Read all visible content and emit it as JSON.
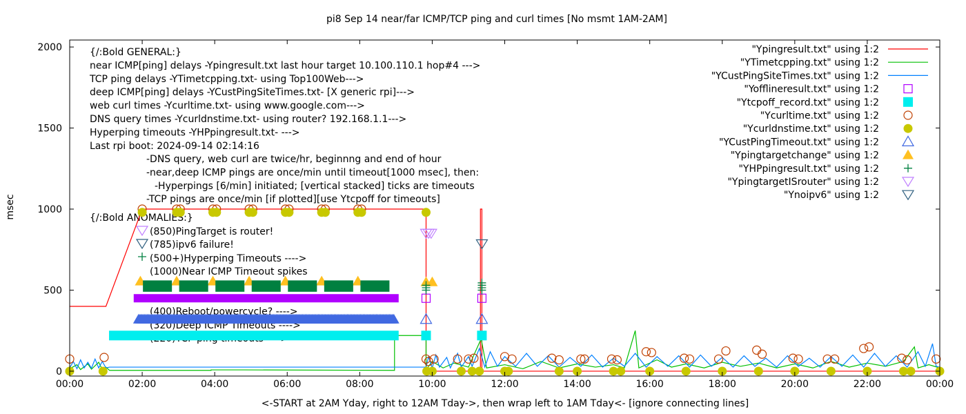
{
  "chart_data": {
    "type": "scatter",
    "title": "pi8 Sep 14  near/far ICMP/TCP ping and curl times [No msmt 1AM-2AM]",
    "xlabel": "<-START at 2AM Yday, right to 12AM Tday->, then wrap left to 1AM Tday<- [ignore connecting lines]",
    "ylabel": "msec",
    "xlim": [
      0,
      24
    ],
    "ylim": [
      -30,
      2043
    ],
    "x_ticks": [
      {
        "v": 0,
        "label": "00:00"
      },
      {
        "v": 2,
        "label": "02:00"
      },
      {
        "v": 4,
        "label": "04:00"
      },
      {
        "v": 6,
        "label": "06:00"
      },
      {
        "v": 8,
        "label": "08:00"
      },
      {
        "v": 10,
        "label": "10:00"
      },
      {
        "v": 12,
        "label": "12:00"
      },
      {
        "v": 14,
        "label": "14:00"
      },
      {
        "v": 16,
        "label": "16:00"
      },
      {
        "v": 18,
        "label": "18:00"
      },
      {
        "v": 20,
        "label": "20:00"
      },
      {
        "v": 22,
        "label": "22:00"
      },
      {
        "v": 24,
        "label": "00:00"
      }
    ],
    "y_ticks": [
      {
        "v": 0,
        "label": "0"
      },
      {
        "v": 500,
        "label": "500"
      },
      {
        "v": 1000,
        "label": "1000"
      },
      {
        "v": 1500,
        "label": "1500"
      },
      {
        "v": 2000,
        "label": "2000"
      }
    ],
    "grid": false,
    "legend_position": "top-right",
    "annotations": {
      "general": [
        "{/:Bold GENERAL:}",
        "near ICMP[ping] delays -Ypingresult.txt last hour target 10.100.110.1 hop#4 --->",
        "TCP ping delays -YTimetcpping.txt- using Top100Web--->",
        "deep ICMP[ping] delays -YCustPingSiteTimes.txt- [X generic rpi]--->",
        "web curl times -Ycurltime.txt- using www.google.com--->",
        "DNS query times -Ycurldnstime.txt- using router? 192.168.1.1--->",
        "Hyperping timeouts -YHPpingresult.txt- --->",
        "Last rpi boot: 2024-09-14 02:14:16"
      ],
      "notes": [
        "-DNS query, web curl are twice/hr, beginnng and end of hour",
        "-near,deep ICMP pings are once/min until timeout[1000 msec], then:",
        "  -Hyperpings [6/min] initiated; [vertical stacked] ticks are timeouts",
        "-TCP pings are once/min [if plotted][use Ytcpoff for timeouts]"
      ],
      "anomalies_title": "{/:Bold ANOMALIES:}",
      "anomalies": [
        "(850)PingTarget is router!",
        "(785)ipv6 failure!",
        "(500+)Hyperping Timeouts ---->",
        "(1000)Near ICMP Timeout spikes",
        "(400)Reboot/powercycle? ---->",
        "(320)Deep ICMP Timeouts ---->",
        "(220)TCP ping timeouts ---->"
      ]
    },
    "series": [
      {
        "name": "\"Ypingresult.txt\" using 1:2",
        "style": "line",
        "color": "#ff0000",
        "points": [
          [
            0,
            400
          ],
          [
            1,
            400
          ],
          [
            2,
            1000
          ],
          [
            9.83,
            1000
          ],
          [
            9.83,
            0
          ],
          [
            11.33,
            0
          ],
          [
            11.33,
            1000
          ],
          [
            11.37,
            1000
          ],
          [
            11.37,
            0
          ],
          [
            24,
            0
          ]
        ]
      },
      {
        "name": "\"YTimetcpping.txt\" using 1:2",
        "style": "line",
        "color": "#00c000",
        "points": [
          [
            0,
            15
          ],
          [
            0.2,
            40
          ],
          [
            0.3,
            10
          ],
          [
            0.5,
            45
          ],
          [
            0.6,
            12
          ],
          [
            0.8,
            55
          ],
          [
            0.9,
            10
          ],
          [
            1.0,
            25
          ],
          [
            1.1,
            5
          ],
          [
            3.9,
            5
          ],
          [
            3.9,
            8
          ],
          [
            4.8,
            8
          ],
          [
            8.96,
            5
          ],
          [
            8.96,
            220
          ],
          [
            9.83,
            220
          ],
          [
            9.83,
            10
          ],
          [
            10.0,
            60
          ],
          [
            10.3,
            20
          ],
          [
            10.6,
            50
          ],
          [
            11.0,
            25
          ],
          [
            11.35,
            200
          ],
          [
            11.5,
            20
          ],
          [
            12.0,
            40
          ],
          [
            12.5,
            15
          ],
          [
            13.0,
            60
          ],
          [
            13.5,
            20
          ],
          [
            14.0,
            45
          ],
          [
            14.5,
            25
          ],
          [
            15.0,
            40
          ],
          [
            15.3,
            20
          ],
          [
            15.6,
            250
          ],
          [
            15.7,
            20
          ],
          [
            16.2,
            70
          ],
          [
            16.6,
            25
          ],
          [
            17.0,
            45
          ],
          [
            17.5,
            20
          ],
          [
            18.0,
            55
          ],
          [
            18.5,
            30
          ],
          [
            19.0,
            50
          ],
          [
            19.5,
            20
          ],
          [
            20.0,
            45
          ],
          [
            20.5,
            20
          ],
          [
            21.0,
            60
          ],
          [
            21.5,
            25
          ],
          [
            22.0,
            50
          ],
          [
            22.5,
            30
          ],
          [
            23.0,
            60
          ],
          [
            23.3,
            150
          ],
          [
            23.4,
            20
          ],
          [
            23.7,
            40
          ],
          [
            24,
            20
          ]
        ]
      },
      {
        "name": "\"YCustPingSiteTimes.txt\" using 1:2",
        "style": "line",
        "color": "#0080ff",
        "points": [
          [
            0,
            20
          ],
          [
            0.1,
            60
          ],
          [
            0.2,
            15
          ],
          [
            0.3,
            70
          ],
          [
            0.4,
            20
          ],
          [
            0.5,
            55
          ],
          [
            0.6,
            18
          ],
          [
            0.7,
            75
          ],
          [
            0.8,
            20
          ],
          [
            0.9,
            60
          ],
          [
            1.0,
            20
          ],
          [
            1.1,
            25
          ],
          [
            9.83,
            25
          ],
          [
            9.9,
            90
          ],
          [
            10.0,
            20
          ],
          [
            10.1,
            100
          ],
          [
            10.2,
            25
          ],
          [
            10.4,
            85
          ],
          [
            10.5,
            20
          ],
          [
            10.7,
            110
          ],
          [
            10.8,
            25
          ],
          [
            11.0,
            90
          ],
          [
            11.1,
            30
          ],
          [
            11.3,
            140
          ],
          [
            11.45,
            25
          ],
          [
            11.6,
            120
          ],
          [
            11.8,
            30
          ],
          [
            12.0,
            90
          ],
          [
            12.3,
            30
          ],
          [
            12.6,
            110
          ],
          [
            12.9,
            30
          ],
          [
            13.2,
            95
          ],
          [
            13.5,
            25
          ],
          [
            13.8,
            85
          ],
          [
            14.1,
            30
          ],
          [
            14.4,
            100
          ],
          [
            14.7,
            25
          ],
          [
            15.0,
            80
          ],
          [
            15.3,
            30
          ],
          [
            15.6,
            110
          ],
          [
            15.9,
            25
          ],
          [
            16.2,
            90
          ],
          [
            16.5,
            30
          ],
          [
            16.8,
            95
          ],
          [
            17.1,
            25
          ],
          [
            17.4,
            100
          ],
          [
            17.7,
            30
          ],
          [
            18.0,
            85
          ],
          [
            18.3,
            25
          ],
          [
            18.6,
            95
          ],
          [
            18.9,
            30
          ],
          [
            19.2,
            80
          ],
          [
            19.5,
            25
          ],
          [
            19.8,
            95
          ],
          [
            20.1,
            30
          ],
          [
            20.4,
            80
          ],
          [
            20.7,
            25
          ],
          [
            21.0,
            90
          ],
          [
            21.3,
            30
          ],
          [
            21.6,
            100
          ],
          [
            21.9,
            25
          ],
          [
            22.2,
            110
          ],
          [
            22.5,
            30
          ],
          [
            22.8,
            95
          ],
          [
            23.1,
            25
          ],
          [
            23.4,
            120
          ],
          [
            23.6,
            30
          ],
          [
            23.8,
            170
          ],
          [
            23.9,
            30
          ],
          [
            24,
            25
          ]
        ]
      },
      {
        "name": "\"Yofflineresult.txt\" using 1:2",
        "style": "open-square",
        "color": "#b000ff",
        "points": [
          [
            9.83,
            450
          ],
          [
            11.37,
            450
          ]
        ],
        "dense_ranges": [
          [
            1.88,
            8.96,
            450
          ]
        ]
      },
      {
        "name": "\"Ytcpoff_record.txt\" using 1:2",
        "style": "filled-square",
        "color": "#00eeee",
        "points": [
          [
            9.83,
            220
          ],
          [
            11.37,
            220
          ]
        ],
        "dense_ranges": [
          [
            1.2,
            8.96,
            220
          ]
        ]
      },
      {
        "name": "\"Ycurltime.txt\" using 1:2",
        "style": "open-circle",
        "color": "#c04000",
        "points": [
          [
            0,
            75
          ],
          [
            0.95,
            85
          ],
          [
            2,
            1000
          ],
          [
            2.95,
            1000
          ],
          [
            3.05,
            1000
          ],
          [
            3.95,
            1000
          ],
          [
            4.05,
            1000
          ],
          [
            4.95,
            1000
          ],
          [
            5.05,
            1000
          ],
          [
            5.95,
            1000
          ],
          [
            6.05,
            1000
          ],
          [
            6.95,
            1000
          ],
          [
            7.05,
            1000
          ],
          [
            7.95,
            1000
          ],
          [
            8.05,
            1000
          ],
          [
            9.83,
            75
          ],
          [
            9.9,
            60
          ],
          [
            10.05,
            75
          ],
          [
            10.7,
            75
          ],
          [
            11.0,
            75
          ],
          [
            11.15,
            80
          ],
          [
            12.0,
            90
          ],
          [
            12.2,
            75
          ],
          [
            13.3,
            80
          ],
          [
            13.5,
            70
          ],
          [
            14.1,
            75
          ],
          [
            14.2,
            75
          ],
          [
            14.95,
            75
          ],
          [
            15.1,
            70
          ],
          [
            15.9,
            120
          ],
          [
            16.05,
            115
          ],
          [
            16.95,
            80
          ],
          [
            17.1,
            75
          ],
          [
            17.9,
            75
          ],
          [
            18.1,
            125
          ],
          [
            18.95,
            130
          ],
          [
            19.1,
            105
          ],
          [
            19.95,
            80
          ],
          [
            20.1,
            75
          ],
          [
            20.9,
            75
          ],
          [
            21.1,
            75
          ],
          [
            21.9,
            140
          ],
          [
            22.05,
            150
          ],
          [
            22.95,
            80
          ],
          [
            23.1,
            70
          ],
          [
            23.9,
            75
          ]
        ]
      },
      {
        "name": "\"Ycurldnstime.txt\" using 1:2",
        "style": "filled-circle",
        "color": "#c8c800",
        "points": [
          [
            0,
            0
          ],
          [
            0.92,
            0
          ],
          [
            2,
            980
          ],
          [
            2.95,
            980
          ],
          [
            3.05,
            980
          ],
          [
            3.95,
            980
          ],
          [
            4.05,
            980
          ],
          [
            4.95,
            980
          ],
          [
            5.05,
            980
          ],
          [
            5.95,
            980
          ],
          [
            6.05,
            980
          ],
          [
            6.95,
            980
          ],
          [
            7.05,
            980
          ],
          [
            7.95,
            980
          ],
          [
            8.05,
            980
          ],
          [
            9.83,
            980
          ],
          [
            9.85,
            0
          ],
          [
            10.0,
            0
          ],
          [
            10.8,
            0
          ],
          [
            11.1,
            0
          ],
          [
            11.3,
            0
          ],
          [
            12.0,
            0
          ],
          [
            12.1,
            0
          ],
          [
            13.5,
            0
          ],
          [
            14.0,
            0
          ],
          [
            15.0,
            0
          ],
          [
            15.2,
            0
          ],
          [
            16.0,
            0
          ],
          [
            17.0,
            0
          ],
          [
            18.0,
            0
          ],
          [
            19.0,
            0
          ],
          [
            20.0,
            0
          ],
          [
            21.0,
            0
          ],
          [
            22.0,
            0
          ],
          [
            23.0,
            0
          ],
          [
            23.2,
            0
          ],
          [
            24,
            0
          ]
        ]
      },
      {
        "name": "\"YCustPingTimeout.txt\" using 1:2",
        "style": "open-triangle-up",
        "color": "#4169e1",
        "points": [
          [
            9.83,
            320
          ],
          [
            11.37,
            320
          ]
        ],
        "dense_ranges": [
          [
            1.9,
            8.96,
            320
          ]
        ]
      },
      {
        "name": "\"Ypingtargetchange\" using 1:2",
        "style": "filled-triangle-up",
        "color": "#ffc020",
        "points": [
          [
            1.95,
            555
          ],
          [
            2.95,
            555
          ],
          [
            3.95,
            555
          ],
          [
            4.95,
            555
          ],
          [
            5.95,
            555
          ],
          [
            6.95,
            555
          ],
          [
            7.95,
            555
          ],
          [
            9.83,
            550
          ],
          [
            10.0,
            550
          ]
        ]
      },
      {
        "name": "\"YHPpingresult.txt\" using 1:2",
        "style": "plus",
        "color": "#008040",
        "points": [
          [
            9.83,
            500
          ],
          [
            9.83,
            515
          ],
          [
            9.83,
            530
          ],
          [
            11.37,
            500
          ],
          [
            11.37,
            515
          ],
          [
            11.37,
            530
          ],
          [
            11.37,
            545
          ]
        ],
        "block_ranges": [
          [
            2.02,
            2.82
          ],
          [
            3.02,
            3.82
          ],
          [
            4.02,
            4.82
          ],
          [
            5.02,
            5.82
          ],
          [
            6.02,
            6.82
          ],
          [
            7.02,
            7.82
          ],
          [
            8.02,
            8.82
          ]
        ],
        "block_y": [
          490,
          560
        ]
      },
      {
        "name": "\"YpingtargetISrouter\" using 1:2",
        "style": "open-triangle-down",
        "color": "#c080ff",
        "points": [
          [
            9.83,
            850
          ],
          [
            9.9,
            850
          ],
          [
            9.97,
            850
          ]
        ]
      },
      {
        "name": "\"Ynoipv6\" using 1:2",
        "style": "open-triangle-down",
        "color": "#306080",
        "points": [
          [
            11.37,
            785
          ]
        ]
      }
    ]
  }
}
